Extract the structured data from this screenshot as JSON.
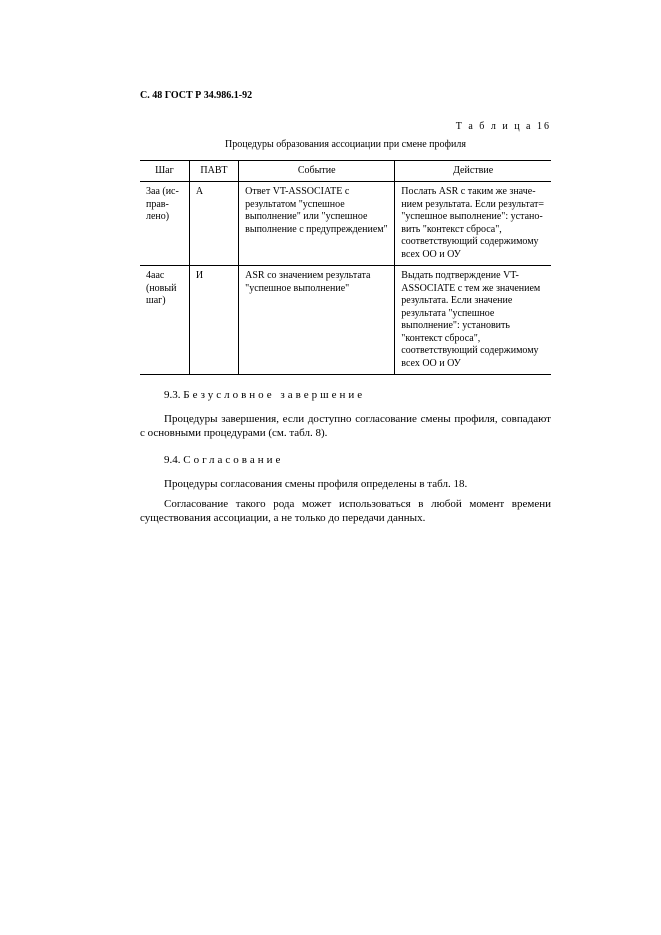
{
  "header": "С. 48 ГОСТ Р 34.986.1-92",
  "table_label": "Т а б л и ц а  16",
  "table_title": "Процедуры образования ассоциации при смене профиля",
  "columns": [
    "Шаг",
    "ПАВТ",
    "Событие",
    "Действие"
  ],
  "rows": [
    {
      "step": "3аа (ис­прав­лено)",
      "pavt": "А",
      "event": "Ответ VT-ASSOCIATE с результатом \"успеш­ное выполнение\" или \"успешное выполнение с предупреждением\"",
      "action": "Послать ASR с таким же значе­нием результата. Если результат= \"успешное выпол­нение\": устано­вить \"контекст сброса\", соответствующий содержимому всех ОО и ОУ"
    },
    {
      "step": "4аас (но­вый шаг)",
      "pavt": "И",
      "event": "ASR со значением результата \"успешное выполнение\"",
      "action": "Выдать подтвер­ждение VT-ASSO­CIATE с тем же значением ре­зультата. Если значение резуль­тата \"успешное выполнение\": установить \"контекст сброса\", соответствующий содержимому всех ОО и ОУ"
    }
  ],
  "section93_num": "9.3. ",
  "section93_title": "Безусловное завершение",
  "para93": "Процедуры завершения, если доступно согласование смены профиля, совпадают с основными процедурами (см. табл. 8).",
  "section94_num": "9.4. ",
  "section94_title": "Согласование",
  "para94a": "Процедуры согласования смены профиля определены в табл. 18.",
  "para94b": "Согласование такого рода может использоваться в любой момент времени существования ассоциации, а не только до передачи данных.",
  "style": {
    "body_font": "Times New Roman",
    "body_size_pt": 10,
    "heading_size_pt": 11,
    "text_color": "#000000",
    "background": "#ffffff",
    "border_color": "#000000"
  }
}
